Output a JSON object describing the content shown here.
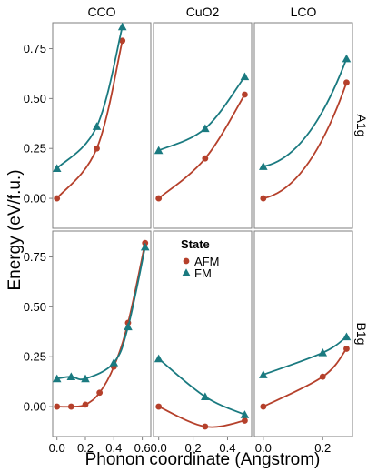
{
  "chart_data": {
    "type": "scatter",
    "xlabel": "Phonon coordinate (Angstrom)",
    "ylabel": "Energy (eV/f.u.)",
    "legend": {
      "title": "State",
      "placement": "center",
      "entries": [
        {
          "name": "AFM",
          "color": "#b5402b",
          "marker": "circle"
        },
        {
          "name": "FM",
          "color": "#1a7a80",
          "marker": "triangle"
        }
      ]
    },
    "columns": [
      "CCO",
      "CuO2",
      "LCO"
    ],
    "rows": [
      "A1g",
      "B1g"
    ],
    "ylim": [
      -0.15,
      0.88
    ],
    "yticks": [
      0.0,
      0.25,
      0.5,
      0.75
    ],
    "ytick_labels": [
      "0.00",
      "0.25",
      "0.50",
      "0.75"
    ],
    "column_axes": [
      {
        "xlim": [
          -0.03,
          0.66
        ],
        "xticks": [
          0.0,
          0.2,
          0.4,
          0.6
        ],
        "xtick_labels": [
          "0.0",
          "0.2",
          "0.4",
          "0.6"
        ]
      },
      {
        "xlim": [
          -0.03,
          0.54
        ],
        "xticks": [
          0.0,
          0.2,
          0.4
        ],
        "xtick_labels": [
          "0.0",
          "0.2",
          "0.4"
        ]
      },
      {
        "xlim": [
          -0.03,
          0.3
        ],
        "xticks": [
          0.0,
          0.2
        ],
        "xtick_labels": [
          "0.0",
          "0.2"
        ]
      }
    ],
    "panels": [
      {
        "column": "CCO",
        "row": "A1g",
        "series": [
          {
            "name": "AFM",
            "x": [
              0.0,
              0.28,
              0.46
            ],
            "y": [
              0.0,
              0.25,
              0.79
            ]
          },
          {
            "name": "FM",
            "x": [
              0.0,
              0.28,
              0.46
            ],
            "y": [
              0.15,
              0.36,
              0.86
            ]
          }
        ]
      },
      {
        "column": "CuO2",
        "row": "A1g",
        "series": [
          {
            "name": "AFM",
            "x": [
              0.0,
              0.27,
              0.5
            ],
            "y": [
              0.0,
              0.2,
              0.52
            ]
          },
          {
            "name": "FM",
            "x": [
              0.0,
              0.27,
              0.5
            ],
            "y": [
              0.24,
              0.35,
              0.61
            ]
          }
        ]
      },
      {
        "column": "LCO",
        "row": "A1g",
        "series": [
          {
            "name": "AFM",
            "x": [
              0.0,
              0.28
            ],
            "y": [
              0.0,
              0.58
            ]
          },
          {
            "name": "FM",
            "x": [
              0.0,
              0.28
            ],
            "y": [
              0.16,
              0.7
            ]
          }
        ]
      },
      {
        "column": "CCO",
        "row": "B1g",
        "series": [
          {
            "name": "AFM",
            "x": [
              0.0,
              0.1,
              0.2,
              0.3,
              0.4,
              0.5,
              0.62
            ],
            "y": [
              0.0,
              0.0,
              0.01,
              0.07,
              0.2,
              0.42,
              0.82
            ]
          },
          {
            "name": "FM",
            "x": [
              0.0,
              0.1,
              0.2,
              0.4,
              0.5,
              0.62
            ],
            "y": [
              0.14,
              0.15,
              0.14,
              0.22,
              0.4,
              0.8
            ]
          }
        ]
      },
      {
        "column": "CuO2",
        "row": "B1g",
        "series": [
          {
            "name": "AFM",
            "x": [
              0.0,
              0.27,
              0.5
            ],
            "y": [
              0.0,
              -0.1,
              -0.07
            ]
          },
          {
            "name": "FM",
            "x": [
              0.0,
              0.27,
              0.5
            ],
            "y": [
              0.24,
              0.05,
              -0.04
            ]
          }
        ]
      },
      {
        "column": "LCO",
        "row": "B1g",
        "series": [
          {
            "name": "AFM",
            "x": [
              0.0,
              0.2,
              0.28
            ],
            "y": [
              0.0,
              0.15,
              0.29
            ]
          },
          {
            "name": "FM",
            "x": [
              0.0,
              0.2,
              0.28
            ],
            "y": [
              0.16,
              0.27,
              0.35
            ]
          }
        ]
      }
    ]
  }
}
